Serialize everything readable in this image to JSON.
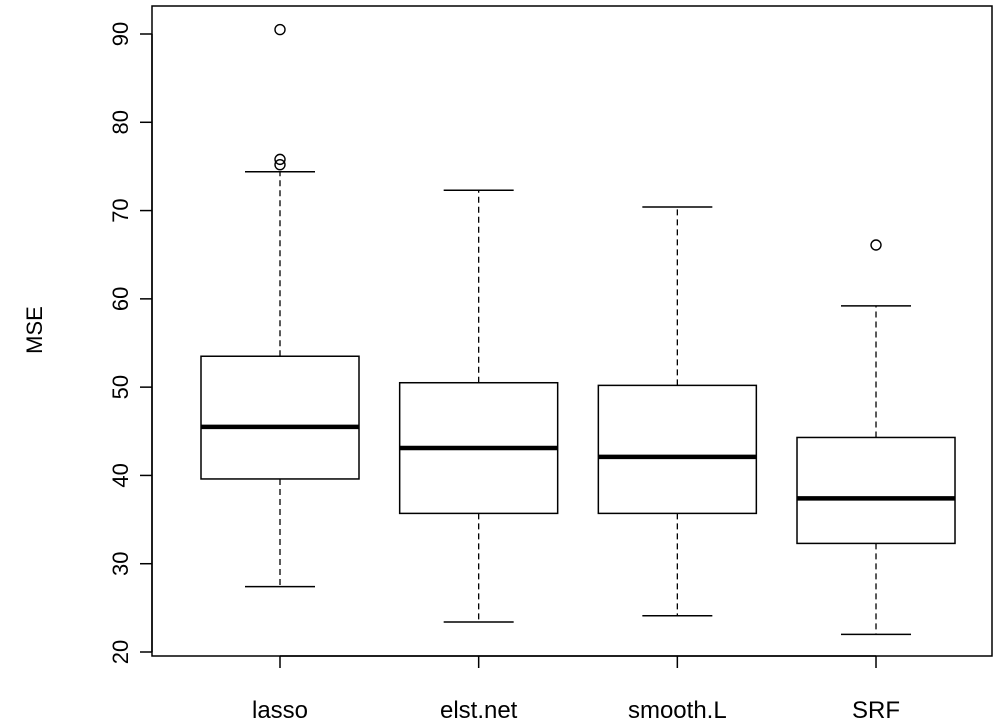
{
  "chart_data": {
    "type": "box",
    "title": "",
    "xlabel": "",
    "ylabel": "MSE",
    "ylim": [
      19,
      94
    ],
    "yticks": [
      20,
      30,
      40,
      50,
      60,
      70,
      80,
      90
    ],
    "categories": [
      "lasso",
      "elst.net",
      "smooth.L",
      "SRF"
    ],
    "boxes": [
      {
        "category": "lasso",
        "whisker_low": 27.4,
        "q1": 39.6,
        "median": 45.5,
        "q3": 53.5,
        "whisker_high": 74.4,
        "outliers": [
          75.2,
          75.8,
          90.5
        ]
      },
      {
        "category": "elst.net",
        "whisker_low": 23.4,
        "q1": 35.7,
        "median": 43.1,
        "q3": 50.5,
        "whisker_high": 72.3,
        "outliers": []
      },
      {
        "category": "smooth.L",
        "whisker_low": 24.1,
        "q1": 35.7,
        "median": 42.1,
        "q3": 50.2,
        "whisker_high": 70.4,
        "outliers": []
      },
      {
        "category": "SRF",
        "whisker_low": 22.0,
        "q1": 32.3,
        "median": 37.4,
        "q3": 44.3,
        "whisker_high": 59.2,
        "outliers": [
          66.1
        ]
      }
    ]
  }
}
